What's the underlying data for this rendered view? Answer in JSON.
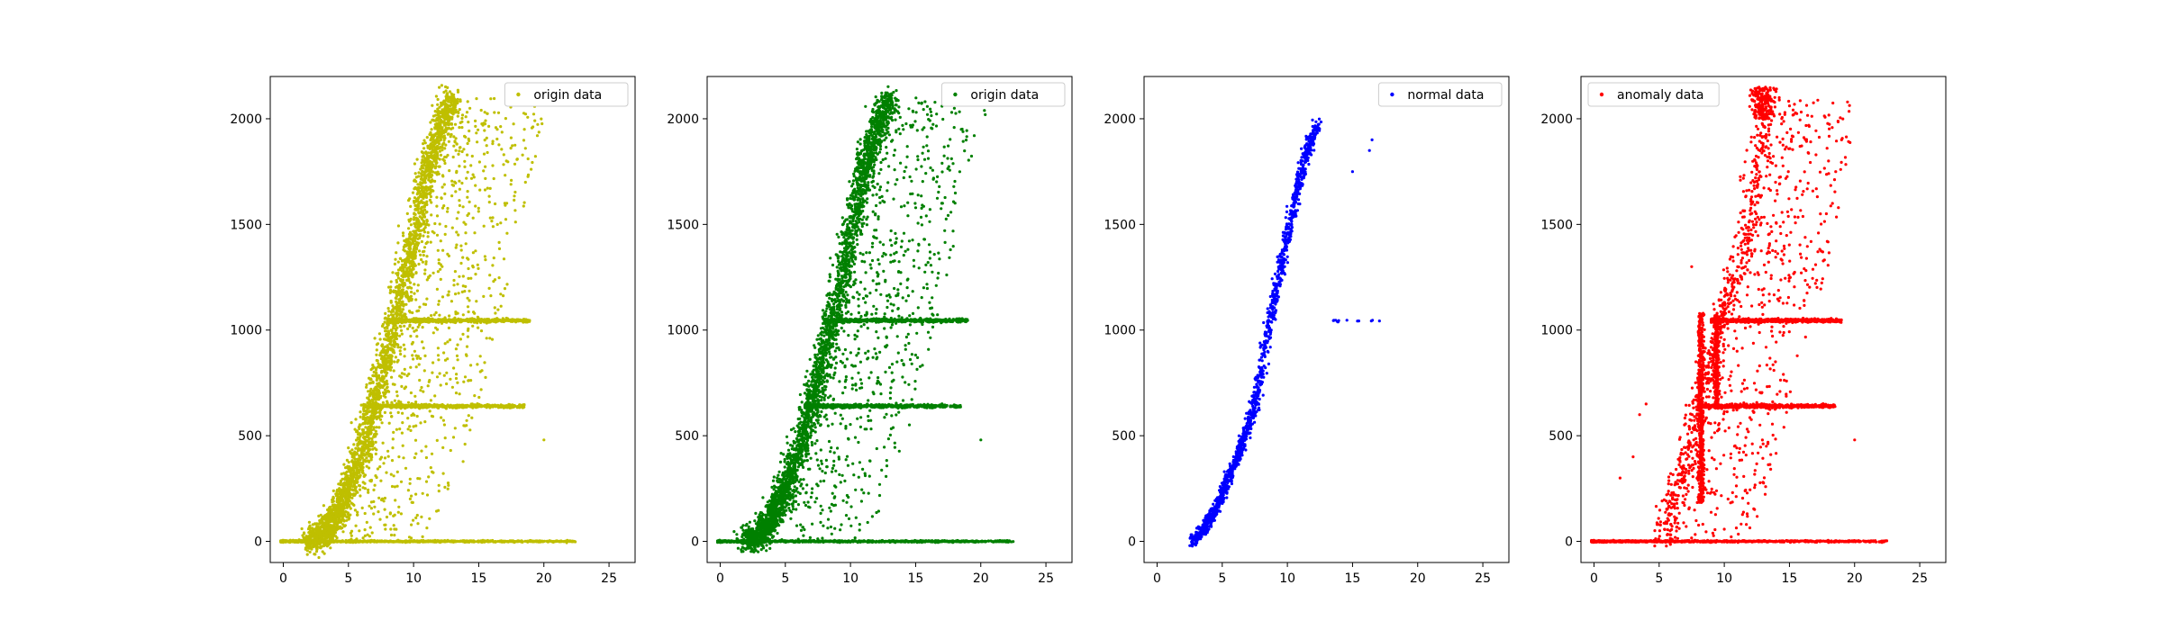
{
  "chart_data": [
    {
      "type": "scatter",
      "title": "",
      "xlabel": "",
      "ylabel": "",
      "xlim": [
        -1,
        27
      ],
      "ylim": [
        -100,
        2200
      ],
      "xticks": [
        0,
        5,
        10,
        15,
        20,
        25
      ],
      "yticks": [
        0,
        500,
        1000,
        1500,
        2000
      ],
      "grid": false,
      "legend_position": "upper right",
      "series": [
        {
          "name": "origin data",
          "color": "#bfbf00",
          "curve": [
            [
              2,
              0
            ],
            [
              3,
              30
            ],
            [
              4,
              120
            ],
            [
              5,
              250
            ],
            [
              6,
              430
            ],
            [
              7,
              650
            ],
            [
              8,
              900
            ],
            [
              9,
              1150
            ],
            [
              10,
              1450
            ],
            [
              11,
              1750
            ],
            [
              12,
              1950
            ],
            [
              13,
              2100
            ]
          ],
          "bands": [
            {
              "y": 640,
              "x": [
                6.5,
                18.5
              ]
            },
            {
              "y": 1045,
              "x": [
                8,
                19
              ]
            },
            {
              "y": 0,
              "x": [
                -0.2,
                22.5
              ]
            }
          ],
          "outliers": [
            [
              20,
              480
            ],
            [
              19.5,
              1920
            ],
            [
              18.5,
              1950
            ],
            [
              17,
              1600
            ]
          ]
        }
      ]
    },
    {
      "type": "scatter",
      "title": "",
      "xlabel": "",
      "ylabel": "",
      "xlim": [
        -1,
        27
      ],
      "ylim": [
        -100,
        2200
      ],
      "xticks": [
        0,
        5,
        10,
        15,
        20,
        25
      ],
      "yticks": [
        0,
        500,
        1000,
        1500,
        2000
      ],
      "grid": false,
      "legend_position": "upper right",
      "series": [
        {
          "name": "origin data",
          "color": "#008000",
          "curve": [
            [
              2,
              0
            ],
            [
              3,
              30
            ],
            [
              4,
              120
            ],
            [
              5,
              250
            ],
            [
              6,
              430
            ],
            [
              7,
              650
            ],
            [
              8,
              900
            ],
            [
              9,
              1150
            ],
            [
              10,
              1450
            ],
            [
              11,
              1750
            ],
            [
              12,
              1950
            ],
            [
              13,
              2100
            ]
          ],
          "bands": [
            {
              "y": 640,
              "x": [
                6.5,
                18.5
              ]
            },
            {
              "y": 1045,
              "x": [
                8,
                19
              ]
            },
            {
              "y": 0,
              "x": [
                -0.2,
                22.5
              ]
            }
          ],
          "outliers": [
            [
              20,
              480
            ],
            [
              19.5,
              1920
            ],
            [
              18.5,
              1950
            ],
            [
              17,
              1600
            ]
          ]
        }
      ]
    },
    {
      "type": "scatter",
      "title": "",
      "xlabel": "",
      "ylabel": "",
      "xlim": [
        -1,
        27
      ],
      "ylim": [
        -100,
        2200
      ],
      "xticks": [
        0,
        5,
        10,
        15,
        20,
        25
      ],
      "yticks": [
        0,
        500,
        1000,
        1500,
        2000
      ],
      "grid": false,
      "legend_position": "upper right",
      "series": [
        {
          "name": "normal data",
          "color": "#0000ff",
          "curve": [
            [
              2.7,
              0
            ],
            [
              3.5,
              50
            ],
            [
              4.5,
              150
            ],
            [
              5.5,
              300
            ],
            [
              6.5,
              450
            ],
            [
              7.5,
              650
            ],
            [
              8,
              800
            ],
            [
              8.5,
              1000
            ],
            [
              9.5,
              1300
            ],
            [
              10.5,
              1600
            ],
            [
              11.5,
              1850
            ],
            [
              12.3,
              1980
            ]
          ],
          "bands": [
            {
              "y": 1045,
              "x": [
                13.5,
                17.5
              ]
            }
          ],
          "outliers": [
            [
              16.5,
              1900
            ],
            [
              16.3,
              1850
            ],
            [
              15,
              1750
            ]
          ]
        }
      ]
    },
    {
      "type": "scatter",
      "title": "",
      "xlabel": "",
      "ylabel": "",
      "xlim": [
        -1,
        27
      ],
      "ylim": [
        -100,
        2200
      ],
      "xticks": [
        0,
        5,
        10,
        15,
        20,
        25
      ],
      "yticks": [
        0,
        500,
        1000,
        1500,
        2000
      ],
      "grid": false,
      "legend_position": "upper left",
      "series": [
        {
          "name": "anomaly data",
          "color": "#ff0000",
          "curve": [
            [
              5,
              0
            ],
            [
              5.5,
              100
            ],
            [
              6,
              200
            ],
            [
              7,
              400
            ],
            [
              8,
              650
            ],
            [
              9,
              900
            ],
            [
              10,
              1100
            ],
            [
              11,
              1300
            ],
            [
              12,
              1600
            ],
            [
              13,
              2050
            ]
          ],
          "bands": [
            {
              "y": 640,
              "x": [
                8,
                18.5
              ]
            },
            {
              "y": 1045,
              "x": [
                9,
                19
              ]
            },
            {
              "y": 0,
              "x": [
                -0.2,
                22.5
              ]
            }
          ],
          "outliers": [
            [
              4,
              650
            ],
            [
              3.5,
              600
            ],
            [
              3,
              400
            ],
            [
              2,
              300
            ],
            [
              19,
              1900
            ],
            [
              18,
              1800
            ],
            [
              20,
              480
            ],
            [
              7.5,
              1300
            ]
          ]
        }
      ]
    }
  ]
}
